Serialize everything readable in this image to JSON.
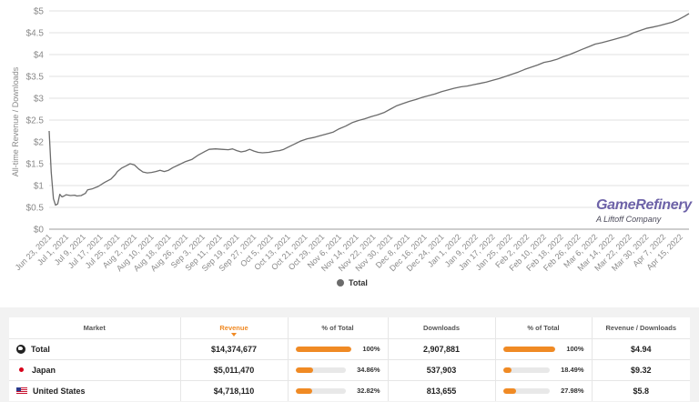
{
  "chart_data": {
    "type": "line",
    "ylabel": "All-time Revenue / Downloads",
    "xlabel": "",
    "ylim": [
      0,
      5
    ],
    "yticks": [
      "$0",
      "$0.5",
      "$1",
      "$1.5",
      "$2",
      "$2.5",
      "$3",
      "$3.5",
      "$4",
      "$4.5",
      "$5"
    ],
    "x_tick_labels": [
      "Jun 23, 2021",
      "Jul 1, 2021",
      "Jul 9, 2021",
      "Jul 17, 2021",
      "Jul 25, 2021",
      "Aug 2, 2021",
      "Aug 10, 2021",
      "Aug 18, 2021",
      "Aug 26, 2021",
      "Sep 3, 2021",
      "Sep 11, 2021",
      "Sep 19, 2021",
      "Sep 27, 2021",
      "Oct 5, 2021",
      "Oct 13, 2021",
      "Oct 21, 2021",
      "Oct 29, 2021",
      "Nov 6, 2021",
      "Nov 14, 2021",
      "Nov 22, 2021",
      "Nov 30, 2021",
      "Dec 8, 2021",
      "Dec 16, 2021",
      "Dec 24, 2021",
      "Jan 1, 2022",
      "Jan 9, 2022",
      "Jan 17, 2022",
      "Jan 25, 2022",
      "Feb 2, 2022",
      "Feb 10, 2022",
      "Feb 18, 2022",
      "Feb 26, 2022",
      "Mar 6, 2022",
      "Mar 14, 2022",
      "Mar 22, 2022",
      "Mar 30, 2022",
      "Apr 7, 2022",
      "Apr 15, 2022"
    ],
    "x_days_end": 300,
    "series": [
      {
        "name": "Total",
        "color": "#6b6b6b",
        "points": [
          [
            0,
            2.25
          ],
          [
            1,
            1.3
          ],
          [
            2,
            0.7
          ],
          [
            3,
            0.55
          ],
          [
            4,
            0.58
          ],
          [
            5,
            0.8
          ],
          [
            6,
            0.74
          ],
          [
            7,
            0.76
          ],
          [
            8,
            0.79
          ],
          [
            10,
            0.77
          ],
          [
            12,
            0.78
          ],
          [
            13,
            0.76
          ],
          [
            15,
            0.77
          ],
          [
            17,
            0.82
          ],
          [
            18,
            0.9
          ],
          [
            20,
            0.92
          ],
          [
            23,
            0.98
          ],
          [
            26,
            1.07
          ],
          [
            29,
            1.15
          ],
          [
            31,
            1.25
          ],
          [
            32,
            1.32
          ],
          [
            34,
            1.4
          ],
          [
            36,
            1.45
          ],
          [
            38,
            1.5
          ],
          [
            40,
            1.47
          ],
          [
            42,
            1.38
          ],
          [
            44,
            1.31
          ],
          [
            46,
            1.29
          ],
          [
            48,
            1.3
          ],
          [
            50,
            1.32
          ],
          [
            52,
            1.35
          ],
          [
            54,
            1.32
          ],
          [
            56,
            1.35
          ],
          [
            58,
            1.41
          ],
          [
            61,
            1.48
          ],
          [
            64,
            1.55
          ],
          [
            67,
            1.6
          ],
          [
            70,
            1.7
          ],
          [
            73,
            1.78
          ],
          [
            75,
            1.83
          ],
          [
            78,
            1.84
          ],
          [
            81,
            1.83
          ],
          [
            84,
            1.82
          ],
          [
            86,
            1.84
          ],
          [
            88,
            1.8
          ],
          [
            90,
            1.77
          ],
          [
            92,
            1.79
          ],
          [
            94,
            1.83
          ],
          [
            96,
            1.79
          ],
          [
            98,
            1.76
          ],
          [
            100,
            1.75
          ],
          [
            103,
            1.76
          ],
          [
            106,
            1.79
          ],
          [
            108,
            1.8
          ],
          [
            110,
            1.83
          ],
          [
            112,
            1.88
          ],
          [
            115,
            1.95
          ],
          [
            118,
            2.02
          ],
          [
            121,
            2.07
          ],
          [
            124,
            2.1
          ],
          [
            127,
            2.14
          ],
          [
            130,
            2.18
          ],
          [
            133,
            2.22
          ],
          [
            136,
            2.3
          ],
          [
            139,
            2.36
          ],
          [
            142,
            2.44
          ],
          [
            145,
            2.49
          ],
          [
            148,
            2.53
          ],
          [
            151,
            2.58
          ],
          [
            154,
            2.62
          ],
          [
            157,
            2.67
          ],
          [
            160,
            2.75
          ],
          [
            163,
            2.83
          ],
          [
            166,
            2.88
          ],
          [
            169,
            2.93
          ],
          [
            172,
            2.97
          ],
          [
            175,
            3.02
          ],
          [
            178,
            3.06
          ],
          [
            181,
            3.1
          ],
          [
            184,
            3.15
          ],
          [
            187,
            3.19
          ],
          [
            190,
            3.23
          ],
          [
            193,
            3.26
          ],
          [
            196,
            3.28
          ],
          [
            199,
            3.31
          ],
          [
            202,
            3.34
          ],
          [
            205,
            3.37
          ],
          [
            208,
            3.41
          ],
          [
            211,
            3.45
          ],
          [
            214,
            3.5
          ],
          [
            217,
            3.55
          ],
          [
            220,
            3.6
          ],
          [
            223,
            3.66
          ],
          [
            226,
            3.71
          ],
          [
            229,
            3.76
          ],
          [
            232,
            3.82
          ],
          [
            235,
            3.85
          ],
          [
            238,
            3.89
          ],
          [
            241,
            3.95
          ],
          [
            244,
            4.0
          ],
          [
            247,
            4.06
          ],
          [
            250,
            4.12
          ],
          [
            253,
            4.18
          ],
          [
            256,
            4.24
          ],
          [
            259,
            4.27
          ],
          [
            262,
            4.31
          ],
          [
            265,
            4.35
          ],
          [
            268,
            4.39
          ],
          [
            271,
            4.43
          ],
          [
            274,
            4.5
          ],
          [
            277,
            4.55
          ],
          [
            280,
            4.6
          ],
          [
            283,
            4.63
          ],
          [
            286,
            4.66
          ],
          [
            289,
            4.7
          ],
          [
            292,
            4.74
          ],
          [
            295,
            4.8
          ],
          [
            298,
            4.88
          ],
          [
            300,
            4.94
          ]
        ]
      }
    ],
    "legend": [
      {
        "label": "Total",
        "color": "#6b6b6b",
        "position": "bottom-center"
      }
    ]
  },
  "brand": {
    "name": "GameRefinery",
    "sub": "A Liftoff Company"
  },
  "legend": {
    "label": "Total"
  },
  "table": {
    "headers": {
      "market": "Market",
      "revenue": "Revenue",
      "pct_total_rev": "% of Total",
      "downloads": "Downloads",
      "pct_total_dl": "% of Total",
      "rev_per_dl": "Revenue / Downloads"
    },
    "rows": [
      {
        "flag": "globe-icon",
        "market": "Total",
        "revenue": "$14,374,677",
        "rev_pct_value": 100,
        "rev_pct": "100%",
        "downloads": "2,907,881",
        "dl_pct_value": 100,
        "dl_pct": "100%",
        "rev_per_dl": "$4.94"
      },
      {
        "flag": "japan-flag-icon",
        "market": "Japan",
        "revenue": "$5,011,470",
        "rev_pct_value": 34.86,
        "rev_pct": "34.86%",
        "downloads": "537,903",
        "dl_pct_value": 18.49,
        "dl_pct": "18.49%",
        "rev_per_dl": "$9.32"
      },
      {
        "flag": "us-flag-icon",
        "market": "United States",
        "revenue": "$4,718,110",
        "rev_pct_value": 32.82,
        "rev_pct": "32.82%",
        "downloads": "813,655",
        "dl_pct_value": 27.98,
        "dl_pct": "27.98%",
        "rev_per_dl": "$5.8"
      }
    ]
  }
}
